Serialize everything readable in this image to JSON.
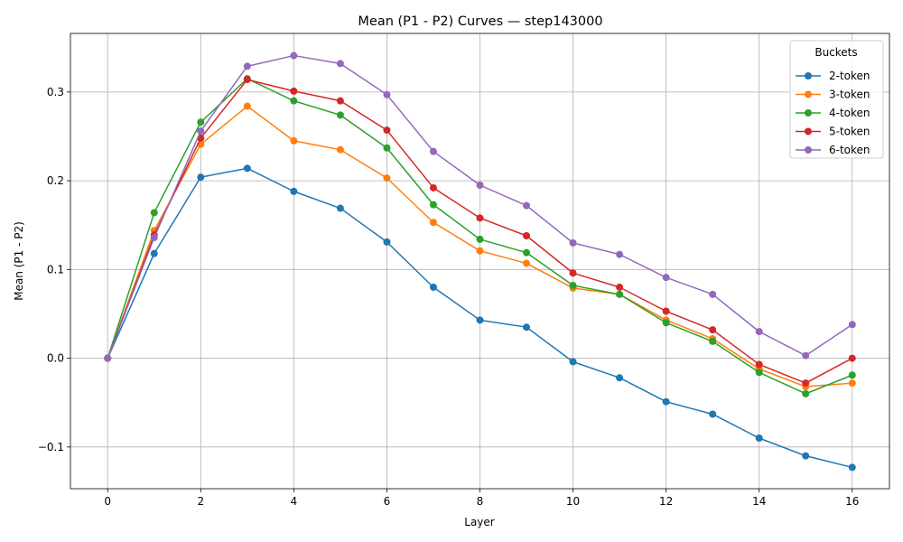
{
  "chart_data": {
    "type": "line",
    "title": "Mean (P1 - P2) Curves — step143000",
    "xlabel": "Layer",
    "ylabel": "Mean (P1 - P2)",
    "xlim": [
      -0.8,
      16.8
    ],
    "ylim": [
      -0.147,
      0.366
    ],
    "xticks": [
      0,
      2,
      4,
      6,
      8,
      10,
      12,
      14,
      16
    ],
    "yticks": [
      -0.1,
      0.0,
      0.1,
      0.2,
      0.3
    ],
    "ytick_labels": [
      "−0.1",
      "0.0",
      "0.1",
      "0.2",
      "0.3"
    ],
    "grid": true,
    "legend": {
      "title": "Buckets",
      "position": "top-right"
    },
    "x": [
      0,
      1,
      2,
      3,
      4,
      5,
      6,
      7,
      8,
      9,
      10,
      11,
      12,
      13,
      14,
      15,
      16
    ],
    "series": [
      {
        "name": "2-token",
        "color": "#1f77b4",
        "values": [
          0.0,
          0.118,
          0.204,
          0.214,
          0.188,
          0.169,
          0.131,
          0.08,
          0.043,
          0.035,
          -0.004,
          -0.022,
          -0.049,
          -0.063,
          -0.09,
          -0.11,
          -0.123
        ]
      },
      {
        "name": "3-token",
        "color": "#ff7f0e",
        "values": [
          0.0,
          0.144,
          0.241,
          0.284,
          0.245,
          0.235,
          0.203,
          0.153,
          0.121,
          0.107,
          0.079,
          0.072,
          0.043,
          0.022,
          -0.012,
          -0.032,
          -0.028
        ]
      },
      {
        "name": "4-token",
        "color": "#2ca02c",
        "values": [
          0.0,
          0.164,
          0.266,
          0.315,
          0.29,
          0.274,
          0.237,
          0.173,
          0.134,
          0.119,
          0.082,
          0.072,
          0.04,
          0.019,
          -0.016,
          -0.04,
          -0.019
        ]
      },
      {
        "name": "5-token",
        "color": "#d62728",
        "values": [
          0.0,
          0.139,
          0.248,
          0.314,
          0.301,
          0.29,
          0.257,
          0.192,
          0.158,
          0.138,
          0.096,
          0.08,
          0.053,
          0.032,
          -0.007,
          -0.028,
          0.0
        ]
      },
      {
        "name": "6-token",
        "color": "#9467bd",
        "values": [
          0.0,
          0.136,
          0.256,
          0.329,
          0.341,
          0.332,
          0.297,
          0.233,
          0.195,
          0.172,
          0.13,
          0.117,
          0.091,
          0.072,
          0.03,
          0.003,
          0.038
        ]
      }
    ]
  }
}
